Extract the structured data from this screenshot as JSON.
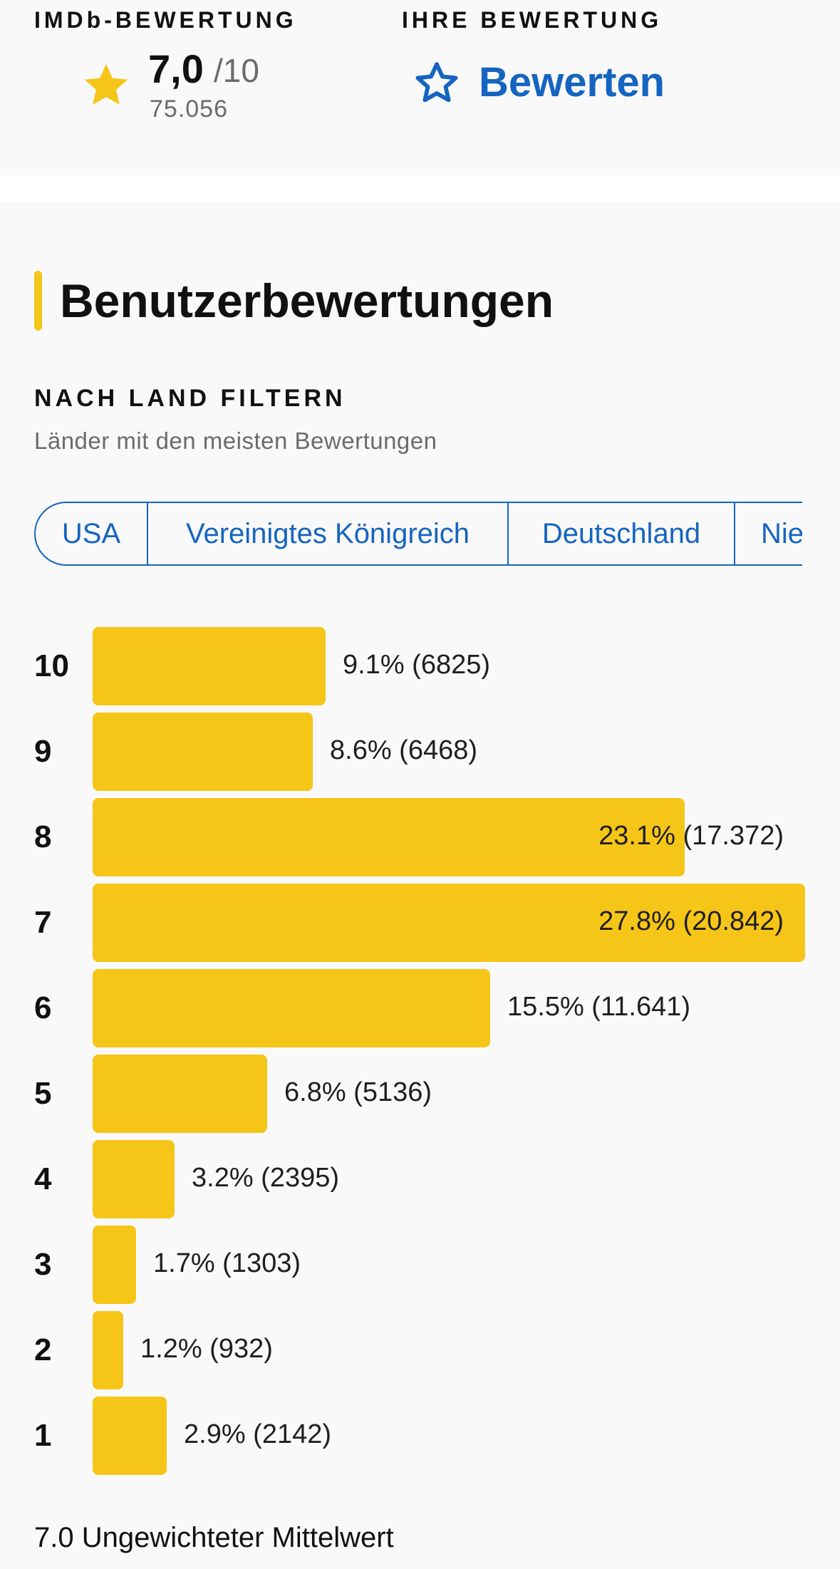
{
  "header": {
    "imdb_label": "IMDb-BEWERTUNG",
    "user_label": "IHRE BEWERTUNG",
    "rating_value": "7,0",
    "rating_max": "/10",
    "rating_count": "75.056",
    "rate_button_label": "Bewerten",
    "accent_color": "#f5c518",
    "link_color": "#1565c0"
  },
  "section": {
    "title": "Benutzerbewertungen",
    "filter_heading": "NACH LAND FILTERN",
    "filter_subtitle": "Länder mit den meisten Bewertungen",
    "countries": [
      "USA",
      "Vereinigtes Königreich",
      "Deutschland",
      "Nie"
    ]
  },
  "chart_data": {
    "type": "bar",
    "orientation": "horizontal",
    "categories": [
      "10",
      "9",
      "8",
      "7",
      "6",
      "5",
      "4",
      "3",
      "2",
      "1"
    ],
    "values": [
      9.1,
      8.6,
      23.1,
      27.8,
      15.5,
      6.8,
      3.2,
      1.7,
      1.2,
      2.9
    ],
    "counts": [
      6825,
      6468,
      17372,
      20842,
      11641,
      5136,
      2395,
      1303,
      932,
      2142
    ],
    "labels": [
      "9.1% (6825)",
      "8.6% (6468)",
      "23.1% (17.372)",
      "27.8% (20.842)",
      "15.5% (11.641)",
      "6.8% (5136)",
      "3.2% (2395)",
      "1.7% (1303)",
      "1.2% (932)",
      "2.9% (2142)"
    ],
    "bar_color": "#f5c518"
  },
  "footer": {
    "mean_text": "7.0 Ungewichteter Mittelwert"
  }
}
